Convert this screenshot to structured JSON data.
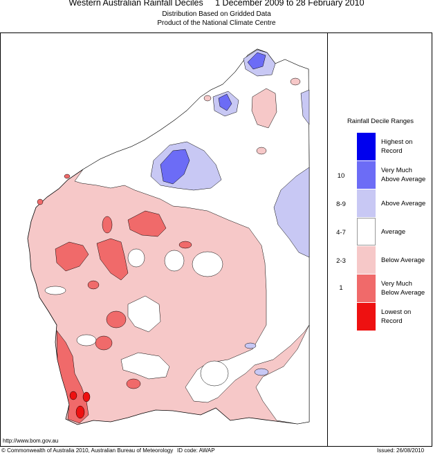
{
  "title": "Western Australian Rainfall Deciles     1 December 2009 to 28 February 2010",
  "subtitle_1": "Distribution Based on Gridded Data",
  "subtitle_2": "Product of the National Climate Centre",
  "legend": {
    "title": "Rainfall Decile Ranges",
    "items": [
      {
        "label_1": "Highest on",
        "label_2": "Record",
        "decile": "",
        "color": "#0000ee"
      },
      {
        "label_1": "Very Much",
        "label_2": "Above Average",
        "decile": "10",
        "color": "#6c6cf6"
      },
      {
        "label_1": "Above Average",
        "label_2": "",
        "decile": "8-9",
        "color": "#c8c8f4"
      },
      {
        "label_1": "Average",
        "label_2": "",
        "decile": "4-7",
        "color": "#ffffff"
      },
      {
        "label_1": "Below Average",
        "label_2": "",
        "decile": "2-3",
        "color": "#f6c8c8"
      },
      {
        "label_1": "Very Much",
        "label_2": "Below Average",
        "decile": "1",
        "color": "#f06a6a"
      },
      {
        "label_1": "Lowest on",
        "label_2": "Record",
        "decile": "",
        "color": "#ee1111"
      }
    ]
  },
  "website": "http://www.bom.gov.au",
  "copyright": "© Commonwealth of Australia 2010, Australian Bureau of Meteorology",
  "id_code": "ID code: AWAP",
  "issued": "Issued: 26/08/2010"
}
